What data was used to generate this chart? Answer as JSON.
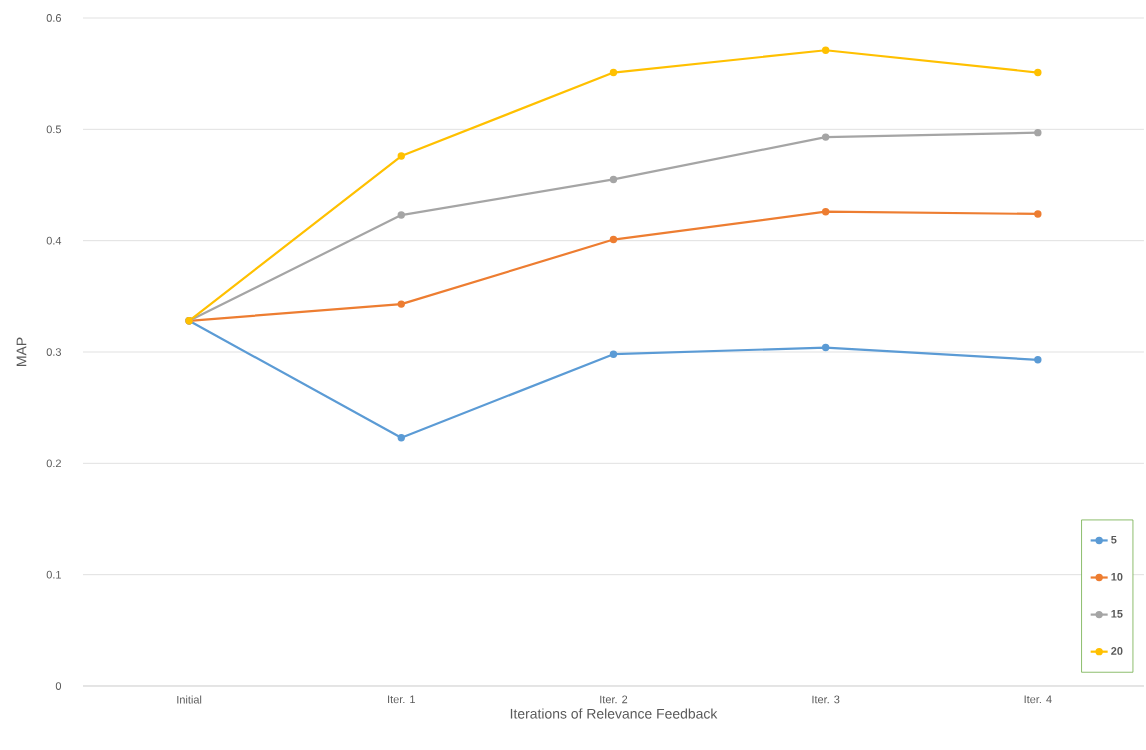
{
  "chart_data": {
    "type": "line",
    "xlabel": "Iterations of Relevance Feedback",
    "ylabel": "MAP",
    "categories": [
      "Initial",
      "Iter. 1",
      "Iter. 2",
      "Iter. 3",
      "Iter. 4"
    ],
    "series": [
      {
        "name": "5",
        "color": "#5b9bd5",
        "values": [
          0.328,
          0.223,
          0.298,
          0.304,
          0.293
        ]
      },
      {
        "name": "10",
        "color": "#ed7d31",
        "values": [
          0.328,
          0.343,
          0.401,
          0.426,
          0.424
        ]
      },
      {
        "name": "15",
        "color": "#a5a5a5",
        "values": [
          0.328,
          0.423,
          0.455,
          0.493,
          0.497
        ]
      },
      {
        "name": "20",
        "color": "#ffc000",
        "values": [
          0.328,
          0.476,
          0.551,
          0.571,
          0.551
        ]
      }
    ],
    "ylim": [
      0,
      0.6
    ],
    "yticks": [
      0,
      0.1,
      0.2,
      0.3,
      0.4,
      0.5,
      0.6
    ],
    "grid": "y",
    "legend": "bottom right",
    "marker": "circle",
    "line_style": "solid"
  }
}
